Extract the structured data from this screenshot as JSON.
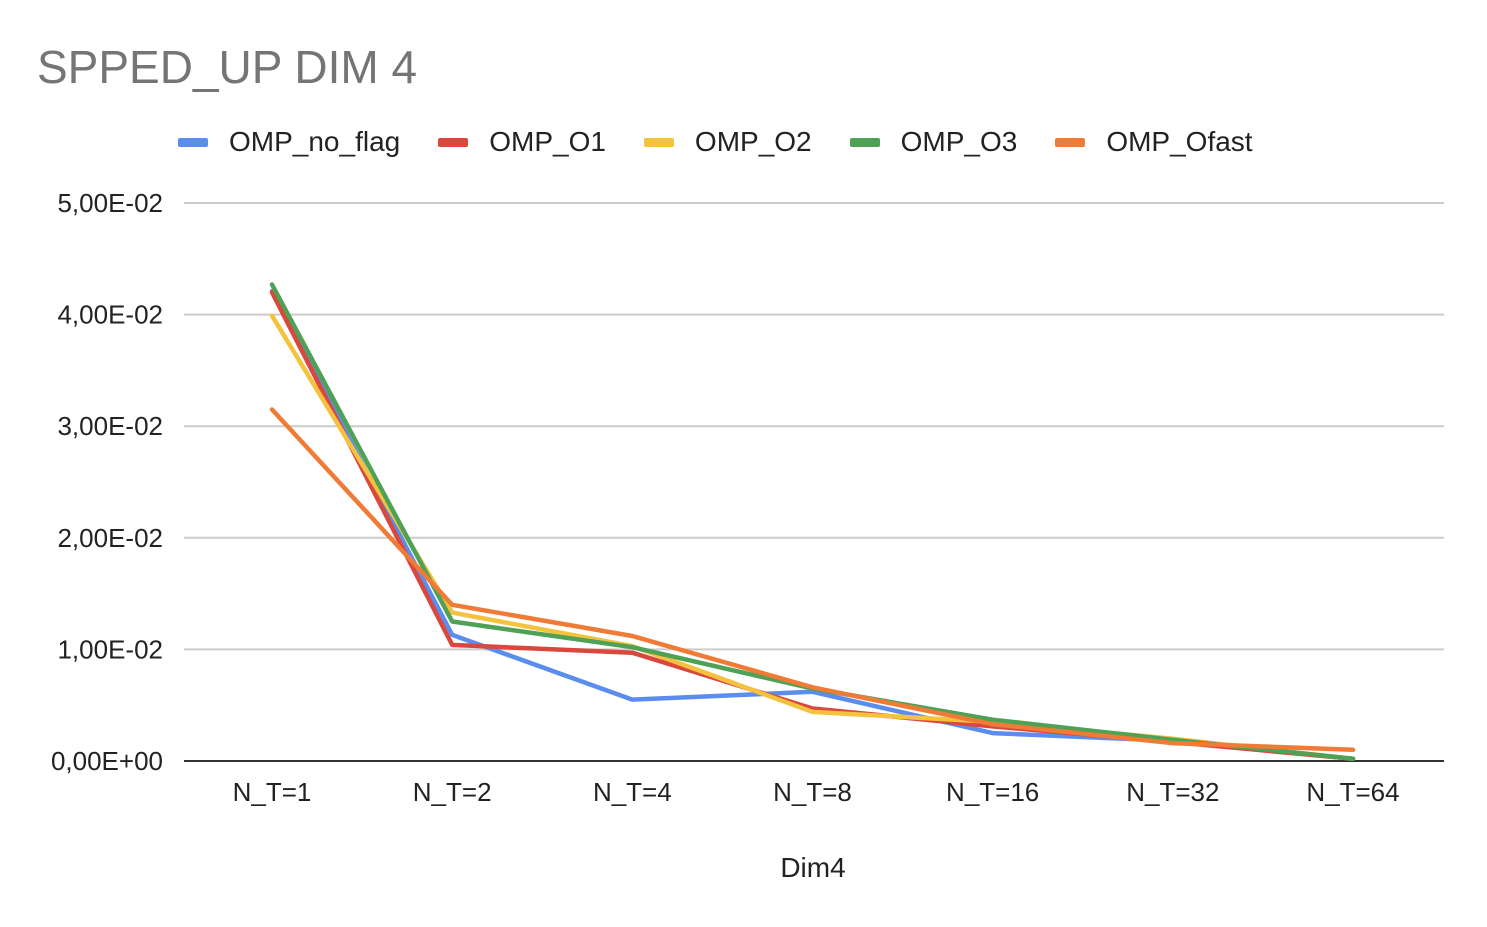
{
  "chart_data": {
    "type": "line",
    "title": "SPPED_UP DIM 4",
    "xlabel": "Dim4",
    "ylabel": "",
    "categories": [
      "N_T=1",
      "N_T=2",
      "N_T=4",
      "N_T=8",
      "N_T=16",
      "N_T=32",
      "N_T=64"
    ],
    "ylim": [
      0,
      0.05
    ],
    "yticks": [
      0,
      0.01,
      0.02,
      0.03,
      0.04,
      0.05
    ],
    "ytick_labels": [
      "0,00E+00",
      "1,00E-02",
      "2,00E-02",
      "3,00E-02",
      "4,00E-02",
      "5,00E-02"
    ],
    "grid": true,
    "legend_position": "top",
    "series": [
      {
        "name": "OMP_no_flag",
        "color": "#5b8def",
        "values": [
          0.0421,
          0.0113,
          0.0055,
          0.0062,
          0.0025,
          0.0018,
          0.0002
        ]
      },
      {
        "name": "OMP_O1",
        "color": "#d9473d",
        "values": [
          0.042,
          0.0104,
          0.0097,
          0.0047,
          0.0031,
          0.0017,
          0.0002
        ]
      },
      {
        "name": "OMP_O2",
        "color": "#f4c23c",
        "values": [
          0.0399,
          0.0133,
          0.0103,
          0.0044,
          0.0035,
          0.002,
          0.0002
        ]
      },
      {
        "name": "OMP_O3",
        "color": "#4ea155",
        "values": [
          0.0427,
          0.0125,
          0.0102,
          0.0065,
          0.0037,
          0.0019,
          0.0002
        ]
      },
      {
        "name": "OMP_Ofast",
        "color": "#ef7b36",
        "values": [
          0.0315,
          0.014,
          0.0112,
          0.0066,
          0.0033,
          0.0016,
          0.001
        ]
      }
    ]
  }
}
